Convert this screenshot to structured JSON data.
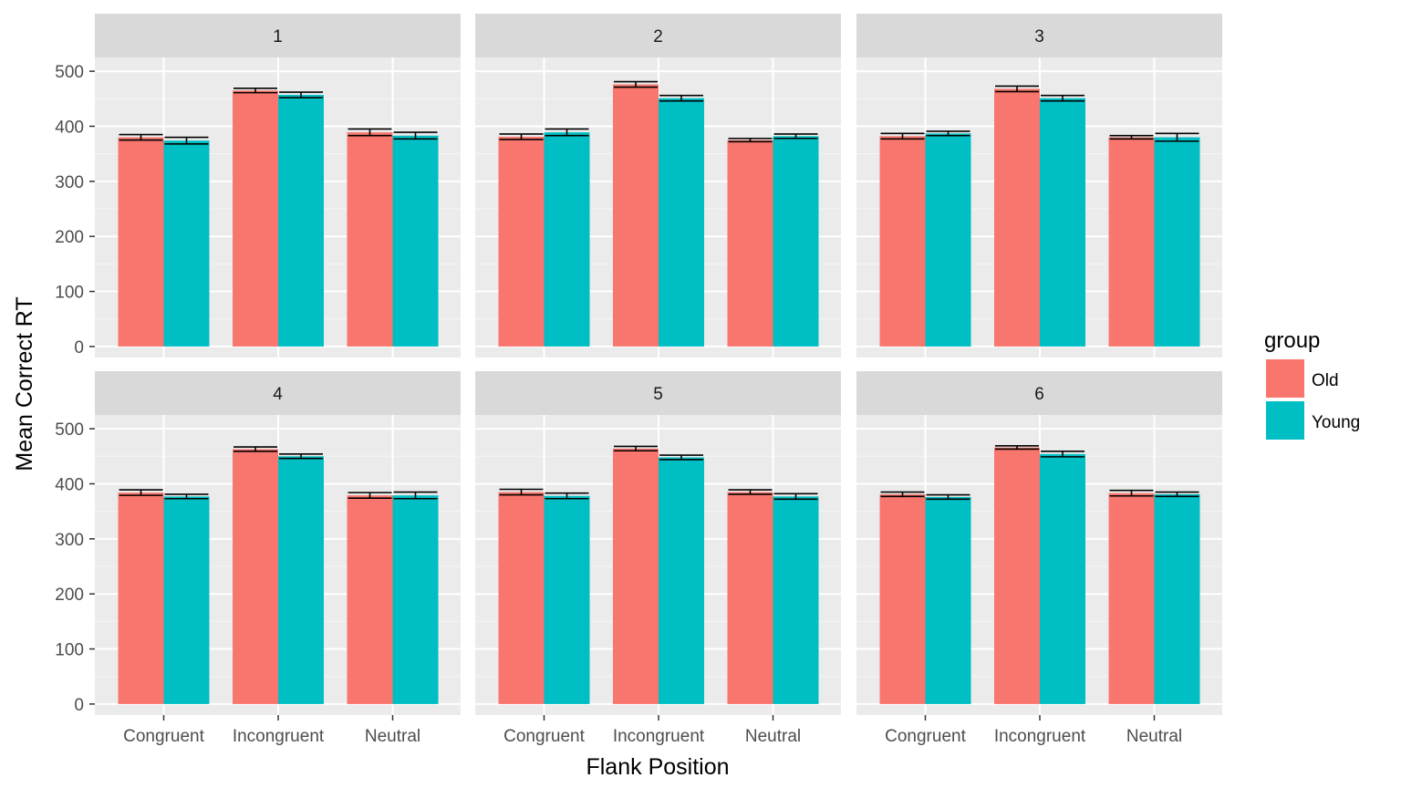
{
  "chart_data": {
    "type": "bar",
    "subtype": "faceted grouped bar with error bars",
    "xlabel": "Flank Position",
    "ylabel": "Mean Correct RT",
    "ylim": [
      0,
      550
    ],
    "yticks": [
      0,
      100,
      200,
      300,
      400,
      500
    ],
    "categories": [
      "Congruent",
      "Incongruent",
      "Neutral"
    ],
    "legend": {
      "title": "group",
      "position": "right",
      "entries": [
        {
          "name": "Old",
          "color": "#F8766D"
        },
        {
          "name": "Young",
          "color": "#00BFC4"
        }
      ]
    },
    "grid": true,
    "facets": [
      {
        "label": "1",
        "series": [
          {
            "name": "Old",
            "values": [
              380,
              465,
              389
            ],
            "errors": [
              5,
              4,
              6
            ]
          },
          {
            "name": "Young",
            "values": [
              374,
              457,
              383
            ],
            "errors": [
              6,
              5,
              6
            ]
          }
        ]
      },
      {
        "label": "2",
        "series": [
          {
            "name": "Old",
            "values": [
              381,
              476,
              375
            ],
            "errors": [
              5,
              5,
              3
            ]
          },
          {
            "name": "Young",
            "values": [
              389,
              451,
              382
            ],
            "errors": [
              6,
              5,
              4
            ]
          }
        ]
      },
      {
        "label": "3",
        "series": [
          {
            "name": "Old",
            "values": [
              382,
              468,
              380
            ],
            "errors": [
              5,
              5,
              3
            ]
          },
          {
            "name": "Young",
            "values": [
              387,
              451,
              380
            ],
            "errors": [
              4,
              5,
              7
            ]
          }
        ]
      },
      {
        "label": "4",
        "series": [
          {
            "name": "Old",
            "values": [
              384,
              463,
              379
            ],
            "errors": [
              5,
              4,
              5
            ]
          },
          {
            "name": "Young",
            "values": [
              377,
              450,
              379
            ],
            "errors": [
              4,
              4,
              6
            ]
          }
        ]
      },
      {
        "label": "5",
        "series": [
          {
            "name": "Old",
            "values": [
              385,
              464,
              385
            ],
            "errors": [
              5,
              4,
              4
            ]
          },
          {
            "name": "Young",
            "values": [
              378,
              448,
              377
            ],
            "errors": [
              5,
              4,
              5
            ]
          }
        ]
      },
      {
        "label": "6",
        "series": [
          {
            "name": "Old",
            "values": [
              381,
              466,
              383
            ],
            "errors": [
              4,
              3,
              5
            ]
          },
          {
            "name": "Young",
            "values": [
              376,
              454,
              381
            ],
            "errors": [
              4,
              5,
              4
            ]
          }
        ]
      }
    ]
  }
}
